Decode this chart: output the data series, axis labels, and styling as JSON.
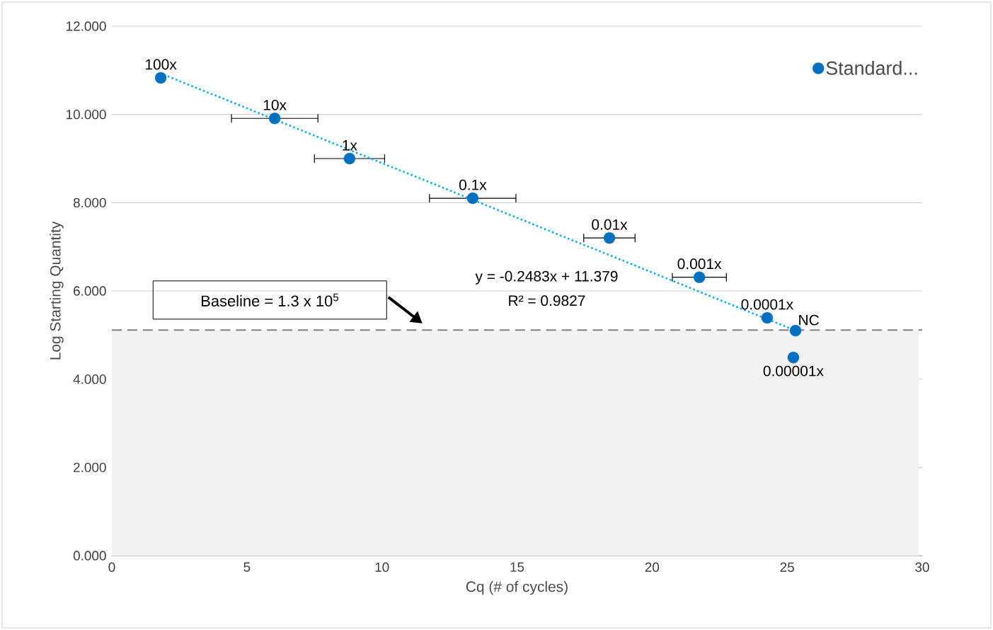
{
  "chart_data": {
    "type": "scatter",
    "xlabel": "Cq (# of cycles)",
    "ylabel": "Log Starting Quantity",
    "xlim": [
      0,
      30
    ],
    "ylim": [
      0,
      12
    ],
    "xticks": [
      0,
      5,
      10,
      15,
      20,
      25,
      30
    ],
    "yticks": [
      {
        "value": 0,
        "label": "0.000"
      },
      {
        "value": 2,
        "label": "2.000"
      },
      {
        "value": 4,
        "label": "4.000"
      },
      {
        "value": 6,
        "label": "6.000"
      },
      {
        "value": 8,
        "label": "8.000"
      },
      {
        "value": 10,
        "label": "10.000"
      },
      {
        "value": 12,
        "label": "12.000"
      }
    ],
    "grid": "y",
    "legend": "top right",
    "series": [
      {
        "name": "Standard...",
        "color": "#0070c0",
        "marker": "circle",
        "x": [
          1.81,
          6.03,
          8.8,
          13.36,
          18.42,
          21.75,
          24.26,
          25.31,
          25.23
        ],
        "values": [
          10.83,
          9.91,
          9.0,
          8.1,
          7.2,
          6.31,
          5.39,
          5.1,
          4.49
        ],
        "xerrors": [
          null,
          1.6,
          1.3,
          1.6,
          0.95,
          1.0,
          null,
          null,
          null
        ]
      },
      {
        "type": "line",
        "color": "#00b0f0",
        "line_style": "dotted",
        "marker": "none",
        "x": [
          1.81,
          25.31
        ],
        "values": [
          10.93,
          5.1
        ]
      }
    ],
    "ref_lines": [
      {
        "axis": "y",
        "value": 5.114,
        "label": "Baseline = 1.3 x 10$^{5}$",
        "color": "#808080",
        "line_style": "dashed"
      }
    ],
    "bands": [
      {
        "axis": "y",
        "from": 0,
        "to": 5.114,
        "color": "#f2f2f2"
      }
    ],
    "annotations": [
      {
        "text": "100x",
        "x": 1.81,
        "y": 10.83
      },
      {
        "text": "10x",
        "x": 6.03,
        "y": 9.91
      },
      {
        "text": "1x",
        "x": 8.8,
        "y": 9.0
      },
      {
        "text": "0.1x",
        "x": 13.36,
        "y": 8.1
      },
      {
        "text": "0.01x",
        "x": 18.42,
        "y": 7.2
      },
      {
        "text": "0.001x",
        "x": 21.75,
        "y": 6.31
      },
      {
        "text": "0.0001x",
        "x": 24.26,
        "y": 5.39
      },
      {
        "text": "NC",
        "x": 25.31,
        "y": 5.1
      },
      {
        "text": "0.00001x",
        "x": 25.23,
        "y": 4.49
      },
      "y = -0.2483x + 11.379",
      "R² = 0.9827"
    ]
  }
}
